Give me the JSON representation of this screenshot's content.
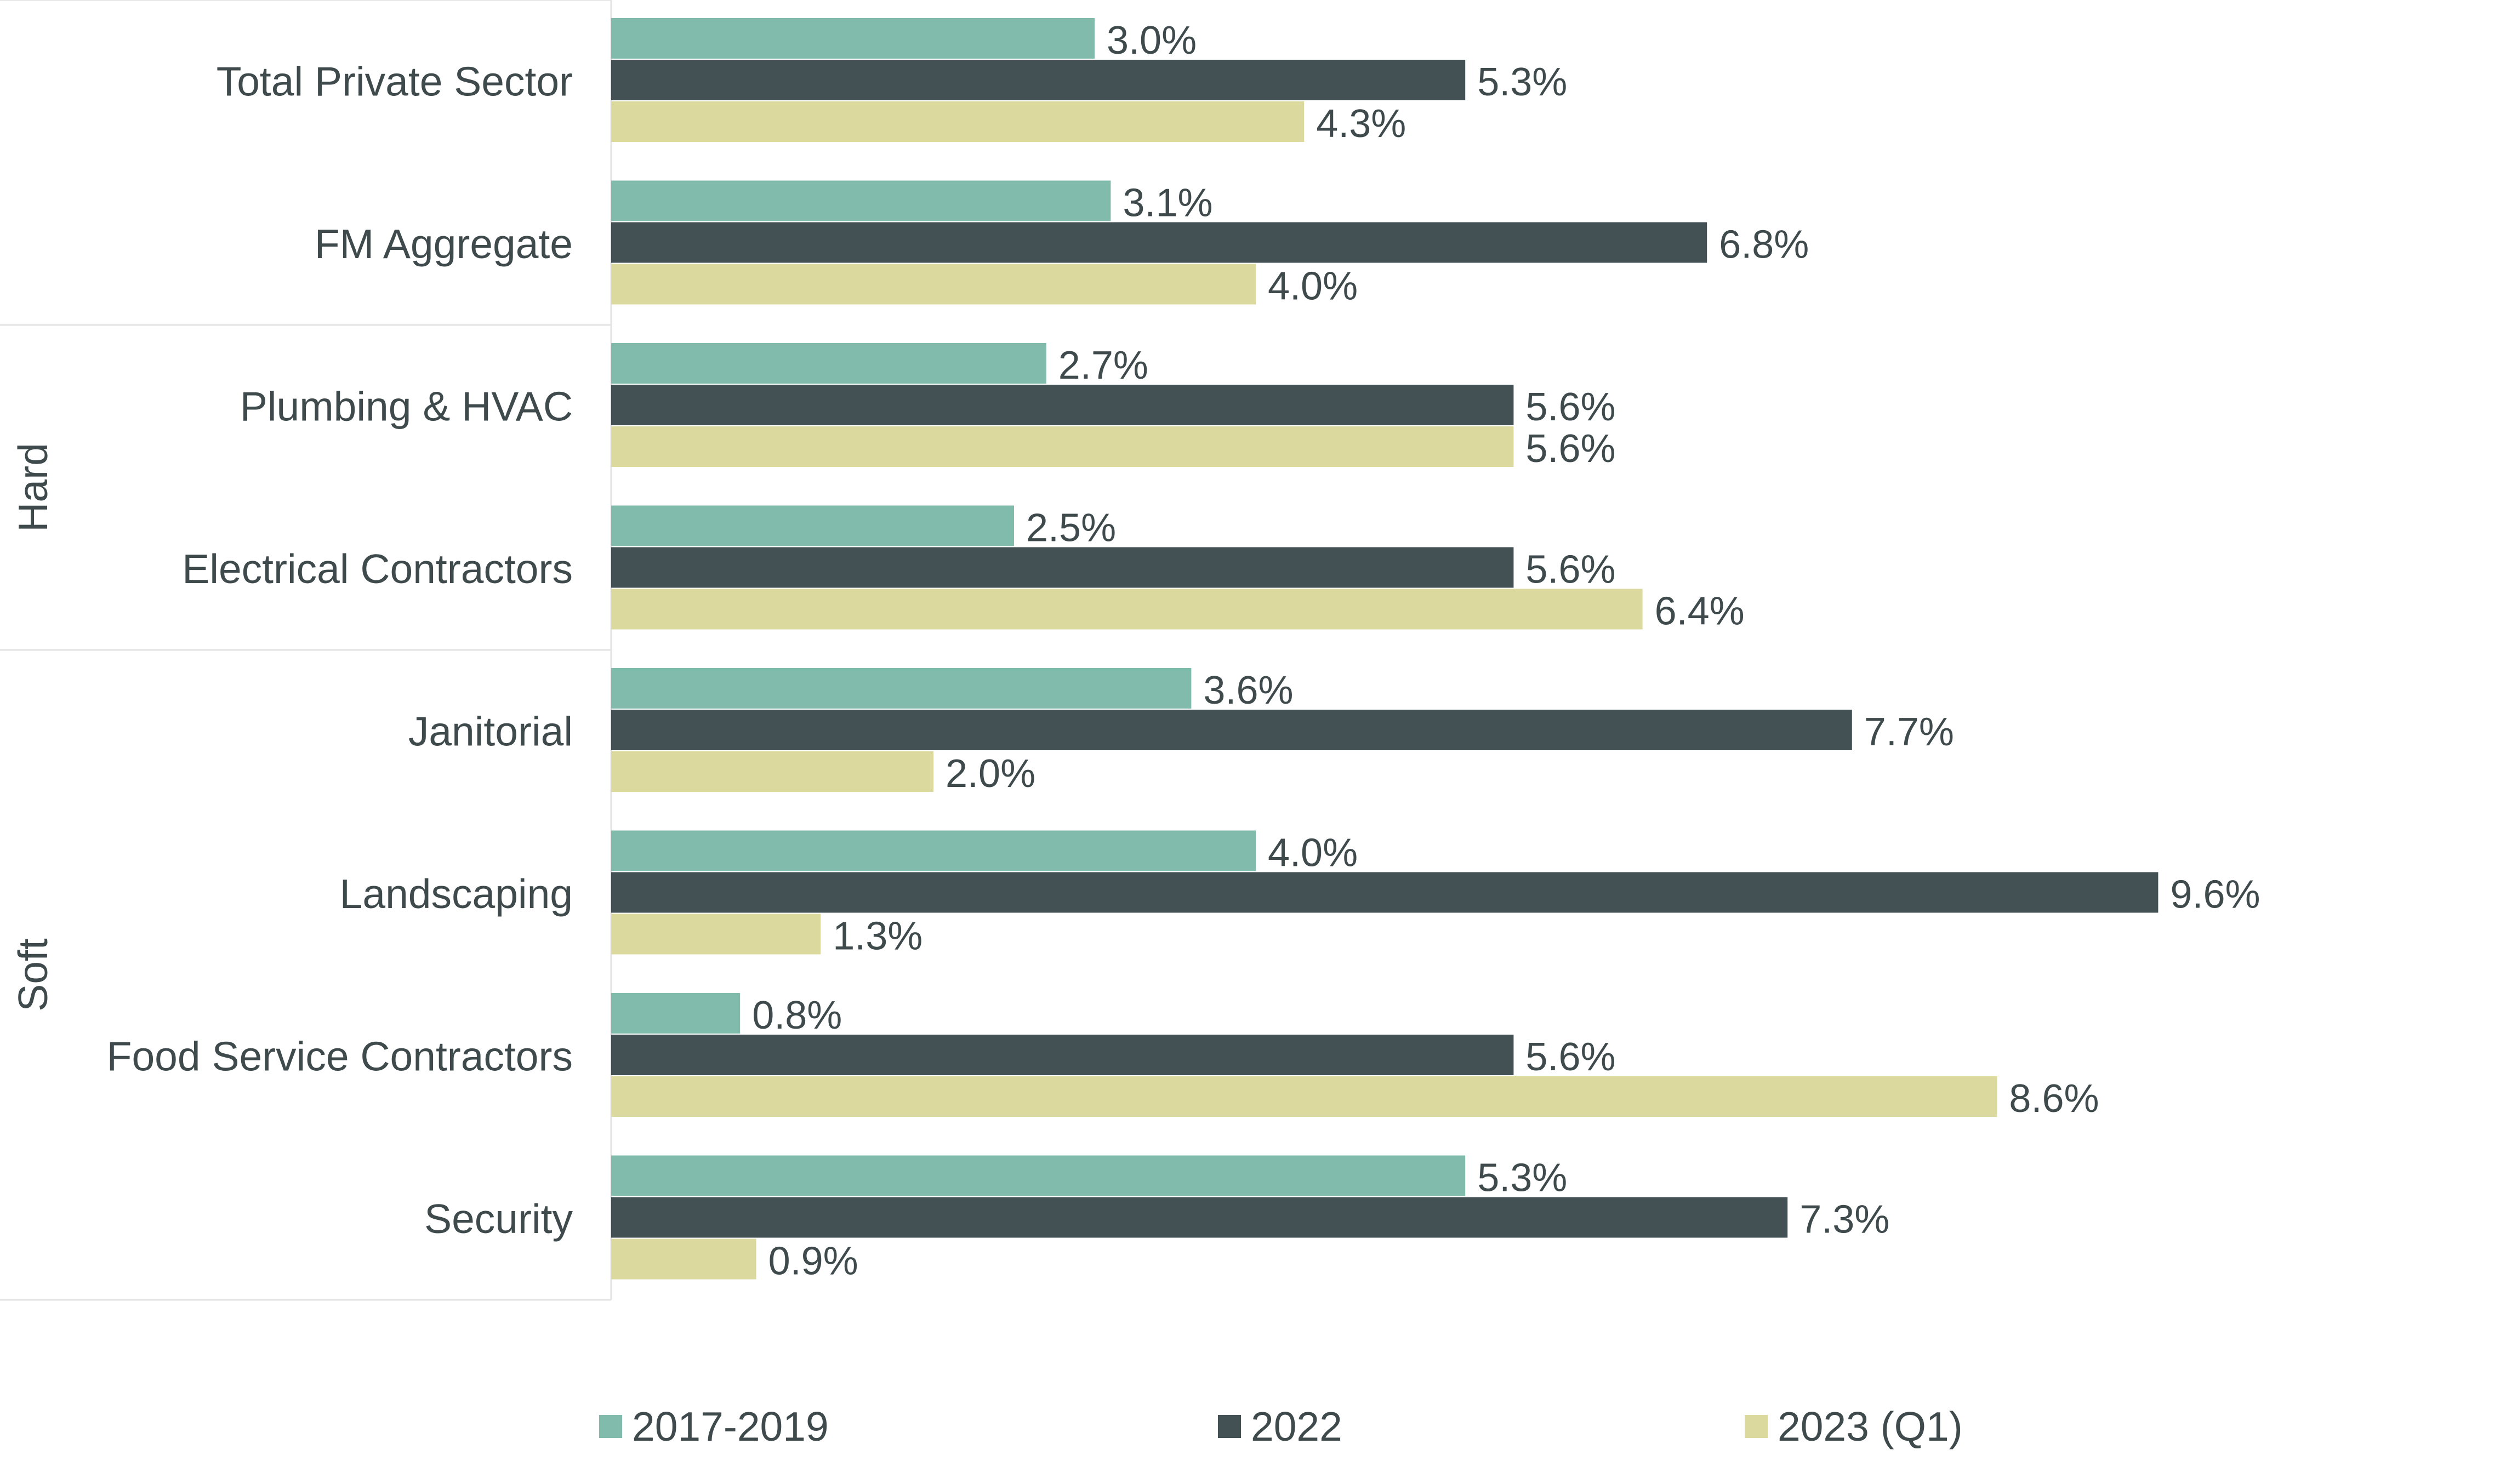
{
  "chart_data": {
    "type": "bar",
    "orientation": "horizontal",
    "title": "",
    "xlabel": "",
    "ylabel": "",
    "xlim": [
      0,
      10.5
    ],
    "grid": false,
    "legend_position": "bottom",
    "categories": [
      "Total Private Sector",
      "FM Aggregate",
      "Plumbing & HVAC",
      "Electrical Contractors",
      "Janitorial",
      "Landscaping",
      "Food Service Contractors",
      "Security"
    ],
    "groups": [
      {
        "label": "Hard",
        "categories": [
          "Plumbing & HVAC",
          "Electrical Contractors"
        ]
      },
      {
        "label": "Soft",
        "categories": [
          "Janitorial",
          "Landscaping",
          "Food Service Contractors",
          "Security"
        ]
      }
    ],
    "series": [
      {
        "name": "2017-2019",
        "color": "#80bbab",
        "values": [
          3.0,
          3.1,
          2.7,
          2.5,
          3.6,
          4.0,
          0.8,
          5.3
        ],
        "labels": [
          "3.0%",
          "3.1%",
          "2.7%",
          "2.5%",
          "3.6%",
          "4.0%",
          "0.8%",
          "5.3%"
        ]
      },
      {
        "name": "2022",
        "color": "#435154",
        "values": [
          5.3,
          6.8,
          5.6,
          5.6,
          7.7,
          9.6,
          5.6,
          7.3
        ],
        "labels": [
          "5.3%",
          "6.8%",
          "5.6%",
          "5.6%",
          "7.7%",
          "9.6%",
          "5.6%",
          "7.3%"
        ]
      },
      {
        "name": "2023 (Q1)",
        "color": "#dbd99d",
        "values": [
          4.3,
          4.0,
          5.6,
          6.4,
          2.0,
          1.3,
          8.6,
          0.9
        ],
        "labels": [
          "4.3%",
          "4.0%",
          "5.6%",
          "6.4%",
          "2.0%",
          "1.3%",
          "8.6%",
          "0.9%"
        ]
      }
    ]
  }
}
